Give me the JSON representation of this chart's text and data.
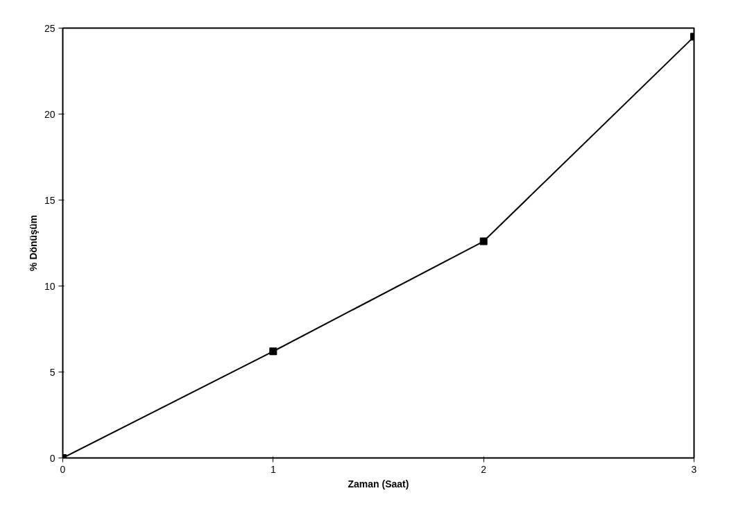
{
  "chart_data": {
    "type": "line",
    "xlabel": "Zaman (Saat)",
    "ylabel": "% Dönüşüm",
    "x": [
      0,
      1,
      2,
      3
    ],
    "series": [
      {
        "color": "#000000",
        "values": [
          0,
          6.2,
          12.6,
          24.5
        ]
      }
    ],
    "xlim": [
      0,
      3
    ],
    "ylim": [
      0,
      25
    ],
    "xticks": [
      0,
      1,
      2,
      3
    ],
    "yticks": [
      0,
      5,
      10,
      15,
      20,
      25
    ],
    "grid": false,
    "marker": "square",
    "line_style": "solid"
  }
}
